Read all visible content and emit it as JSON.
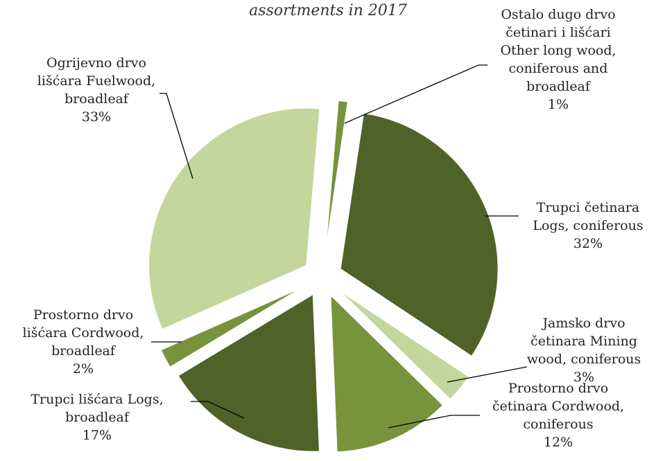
{
  "chart_data": {
    "type": "pie",
    "title": "assortments in 2017",
    "exploded": true,
    "slices": [
      {
        "name": "Ostalo dugo drvo četinari i lišćari Other long wood, coniferous and broadleaf",
        "value": 1,
        "label_lines": [
          "Ostalo dugo drvo",
          "četinari i lišćari",
          "Other long wood,",
          "coniferous and",
          "broadleaf",
          "1%"
        ],
        "color": "#77933c"
      },
      {
        "name": "Trupci četinara Logs, coniferous",
        "value": 32,
        "label_lines": [
          "Trupci četinara",
          "Logs, coniferous",
          "32%"
        ],
        "color": "#4f6228"
      },
      {
        "name": "Jamsko drvo četinara Mining wood, coniferous",
        "value": 3,
        "label_lines": [
          "Jamsko drvo",
          "četinara Mining",
          "wood, coniferous",
          "3%"
        ],
        "color": "#c3d69b"
      },
      {
        "name": "Prostorno drvo četinara Cordwood, coniferous",
        "value": 12,
        "label_lines": [
          "Prostorno drvo",
          "četinara Cordwood,",
          "coniferous",
          "12%"
        ],
        "color": "#77933c"
      },
      {
        "name": "Trupci lišćara Logs, broadleaf",
        "value": 17,
        "label_lines": [
          "Trupci lišćara Logs,",
          "broadleaf",
          "17%"
        ],
        "color": "#4f6228"
      },
      {
        "name": "Prostorno drvo lišćara Cordwood, broadleaf",
        "value": 2,
        "label_lines": [
          "Prostorno drvo",
          "lišćara Cordwood,",
          "broadleaf",
          "2%"
        ],
        "color": "#77933c"
      },
      {
        "name": "Ogrijevno drvo lišćara Fuelwood, broadleaf",
        "value": 33,
        "label_lines": [
          "Ogrijevno drvo",
          "lišćara Fuelwood,",
          "broadleaf",
          "33%"
        ],
        "color": "#c3d69b"
      }
    ]
  }
}
